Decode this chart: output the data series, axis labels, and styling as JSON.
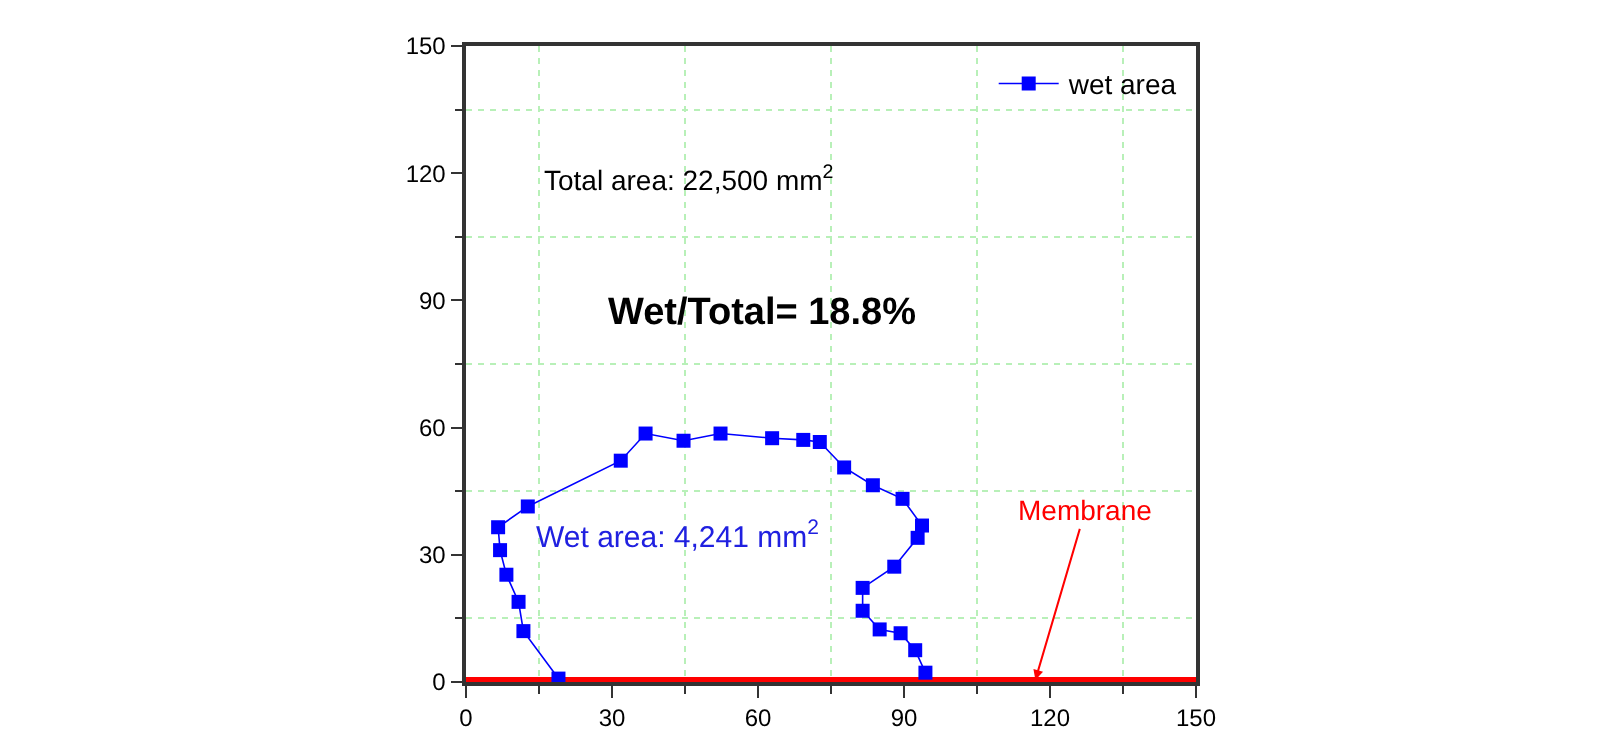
{
  "chart_data": {
    "type": "line",
    "marker": "square",
    "line_style": "solid",
    "legend": "top right",
    "grid": true,
    "series": [
      {
        "name": "wet area",
        "color": "#0000ff",
        "x": [
          19.0,
          11.8,
          10.8,
          8.3,
          7.0,
          6.6,
          12.7,
          31.8,
          36.9,
          44.7,
          52.3,
          62.9,
          69.3,
          72.7,
          77.7,
          83.6,
          89.7,
          93.7,
          92.8,
          88.0,
          81.5,
          81.5,
          85.0,
          89.3,
          92.3,
          94.4
        ],
        "values": [
          0.8,
          12.0,
          18.9,
          25.3,
          31.1,
          36.5,
          41.4,
          52.2,
          58.6,
          56.9,
          58.6,
          57.5,
          57.1,
          56.6,
          50.6,
          46.4,
          43.2,
          36.9,
          34.0,
          27.2,
          22.2,
          16.8,
          12.4,
          11.5,
          7.5,
          2.2
        ]
      }
    ],
    "xlim": [
      0,
      150
    ],
    "ylim": [
      0,
      150
    ],
    "xticks": [
      0,
      {
        "value": 15,
        "label": null
      },
      30,
      {
        "value": 45,
        "label": null
      },
      60,
      {
        "value": 75,
        "label": null
      },
      90,
      {
        "value": 105,
        "label": null
      },
      120,
      {
        "value": 135,
        "label": null
      },
      150
    ],
    "yticks": [
      0,
      {
        "value": 15,
        "label": null
      },
      30,
      {
        "value": 45,
        "label": null
      },
      60,
      {
        "value": 75,
        "label": null
      },
      90,
      {
        "value": 105,
        "label": null
      },
      120,
      {
        "value": 135,
        "label": null
      },
      150
    ],
    "ref_lines": [
      {
        "axis": "y",
        "value": 0.5,
        "label": "Membrane",
        "color": "#ff0000"
      }
    ],
    "annotations": [
      "Total area: 22,500 mm$^{2}$",
      "Wet/Total= 18.8%",
      "Wet area: 4,241 mm$^{2}$"
    ]
  }
}
